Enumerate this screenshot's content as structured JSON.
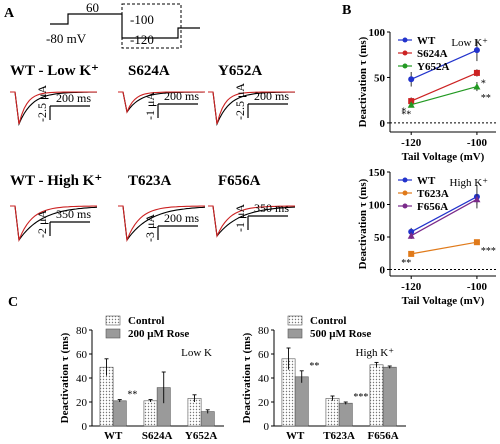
{
  "panel_labels": {
    "a": "A",
    "b": "B",
    "c": "C"
  },
  "protocol": {
    "v60": "60",
    "v80": "-80 mV",
    "v100": "-100",
    "v120": "-120"
  },
  "traces": {
    "row1": [
      {
        "title": "WT - Low K⁺",
        "time": "200 ms",
        "amp": "-2.5 μA"
      },
      {
        "title": "S624A",
        "time": "200 ms",
        "amp": "-1 μA"
      },
      {
        "title": "Y652A",
        "time": "200 ms",
        "amp": "-2.5 μA"
      }
    ],
    "row2": [
      {
        "title": "WT - High K⁺",
        "time": "350 ms",
        "amp": "-2 μA"
      },
      {
        "title": "T623A",
        "time": "200 ms",
        "amp": "-3 μA"
      },
      {
        "title": "F656A",
        "time": "350 ms",
        "amp": "-1 μA"
      }
    ],
    "colors": {
      "control": "#000000",
      "drug": "#cc2222"
    }
  },
  "chart_data": [
    {
      "type": "line",
      "panel": "B-top",
      "title": "Low K⁺",
      "xlabel": "Tail Voltage (mV)",
      "ylabel": "Deactivation τ (ms)",
      "x": [
        -120,
        -100
      ],
      "xticks": [
        "-120",
        "-100"
      ],
      "ylim": [
        -10,
        100
      ],
      "yticks": [
        0,
        50,
        100
      ],
      "legend_position": "top-left",
      "series": [
        {
          "name": "WT",
          "color": "#2233cc",
          "marker": "circle",
          "values": [
            48,
            80
          ],
          "errors": [
            8,
            12
          ]
        },
        {
          "name": "S624A",
          "color": "#cc2222",
          "marker": "square",
          "values": [
            24,
            55
          ],
          "errors": [
            4,
            4
          ]
        },
        {
          "name": "Y652A",
          "color": "#229922",
          "marker": "triangle",
          "values": [
            20,
            40
          ],
          "errors": [
            3,
            5
          ]
        }
      ],
      "annotations": [
        {
          "x": -120,
          "text": "*",
          "near": "S624A"
        },
        {
          "x": -120,
          "text": "**",
          "near": "Y652A"
        },
        {
          "x": -100,
          "text": "*",
          "near": "S624A"
        },
        {
          "x": -100,
          "text": "**",
          "near": "Y652A"
        }
      ]
    },
    {
      "type": "line",
      "panel": "B-bottom",
      "title": "High K⁺",
      "xlabel": "Tail Voltage (mV)",
      "ylabel": "Deactivation τ (ms)",
      "x": [
        -120,
        -100
      ],
      "xticks": [
        "-120",
        "-100"
      ],
      "ylim": [
        -10,
        150
      ],
      "yticks": [
        0,
        50,
        100,
        150
      ],
      "legend_position": "top-left",
      "series": [
        {
          "name": "WT",
          "color": "#2233cc",
          "marker": "circle",
          "values": [
            58,
            112
          ],
          "errors": [
            6,
            18
          ]
        },
        {
          "name": "T623A",
          "color": "#e07a1a",
          "marker": "square",
          "values": [
            24,
            42
          ],
          "errors": [
            3,
            3
          ]
        },
        {
          "name": "F656A",
          "color": "#7a2a8a",
          "marker": "triangle",
          "values": [
            52,
            108
          ],
          "errors": [
            5,
            8
          ]
        }
      ],
      "annotations": [
        {
          "x": -120,
          "text": "**",
          "near": "T623A"
        },
        {
          "x": -100,
          "text": "***",
          "near": "T623A"
        }
      ]
    },
    {
      "type": "bar",
      "panel": "C-left",
      "title": "Low K",
      "ylabel": "Deactivation τ (ms)",
      "categories": [
        "WT",
        "S624A",
        "Y652A"
      ],
      "ylim": [
        0,
        80
      ],
      "yticks": [
        0,
        20,
        40,
        60,
        80
      ],
      "legend_position": "top-left",
      "series": [
        {
          "name": "Control",
          "pattern": "dotted",
          "values": [
            49,
            21,
            23
          ],
          "errors": [
            7,
            1,
            3
          ]
        },
        {
          "name": "200 μM Rose",
          "pattern": "gray",
          "values": [
            21,
            32,
            12
          ],
          "errors": [
            1,
            13,
            1.5
          ]
        }
      ],
      "annotations": [
        {
          "category": "WT",
          "text": "**"
        }
      ]
    },
    {
      "type": "bar",
      "panel": "C-right",
      "title": "High K⁺",
      "ylabel": "Deactivation τ (ms)",
      "categories": [
        "WT",
        "T623A",
        "F656A"
      ],
      "ylim": [
        0,
        80
      ],
      "yticks": [
        0,
        20,
        40,
        60,
        80
      ],
      "legend_position": "top-left",
      "series": [
        {
          "name": "Control",
          "pattern": "dotted",
          "values": [
            56,
            23,
            51
          ],
          "errors": [
            9,
            2,
            2
          ]
        },
        {
          "name": "500 μM Rose",
          "pattern": "gray",
          "values": [
            41,
            19,
            49
          ],
          "errors": [
            5,
            1,
            1
          ]
        }
      ],
      "annotations": [
        {
          "category": "WT",
          "text": "**"
        },
        {
          "category": "T623A",
          "text": "***"
        }
      ]
    }
  ]
}
